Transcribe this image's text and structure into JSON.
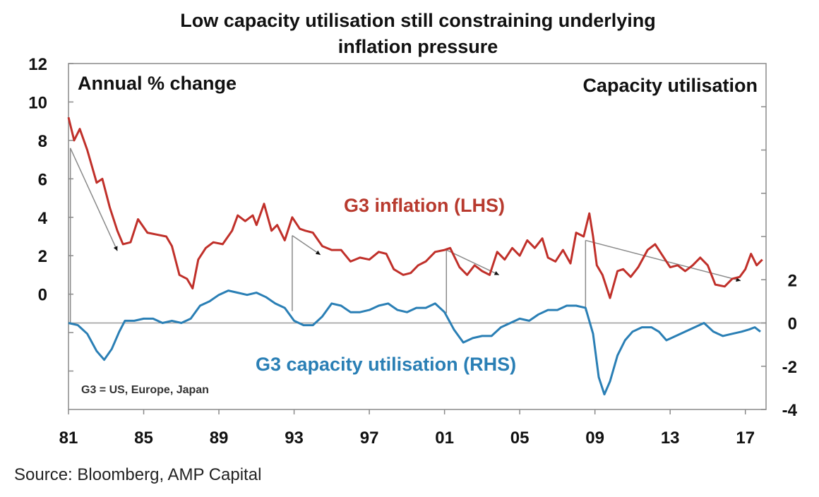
{
  "chart_data": {
    "type": "line",
    "title": "Low capacity utilisation still constraining underlying inflation pressure",
    "title_lines": [
      "Low capacity utilisation still constraining underlying",
      "inflation pressure"
    ],
    "left_axis_label": "Annual % change",
    "right_axis_label": "Capacity utilisation",
    "note": "G3 = US, Europe, Japan",
    "source": "Source: Bloomberg, AMP Capital",
    "x_ticks": [
      {
        "year": 1981,
        "label": "81"
      },
      {
        "year": 1985,
        "label": "85"
      },
      {
        "year": 1989,
        "label": "89"
      },
      {
        "year": 1993,
        "label": "93"
      },
      {
        "year": 1997,
        "label": "97"
      },
      {
        "year": 2001,
        "label": "01"
      },
      {
        "year": 2005,
        "label": "05"
      },
      {
        "year": 2009,
        "label": "09"
      },
      {
        "year": 2013,
        "label": "13"
      },
      {
        "year": 2017,
        "label": "17"
      }
    ],
    "xlim": [
      1981,
      2018.1
    ],
    "y_left": {
      "lim": [
        -6,
        12
      ],
      "ticks": [
        12,
        10,
        8,
        6,
        4,
        2,
        0,
        -2,
        -4
      ],
      "labels": [
        "12",
        "10",
        "8",
        "6",
        "4",
        "2",
        "0",
        "",
        ""
      ]
    },
    "y_right": {
      "lim": [
        -4,
        12
      ],
      "ticks": [
        10,
        8,
        6,
        4,
        2,
        0,
        -2,
        -4
      ],
      "labels": [
        "",
        "",
        "",
        "",
        "2",
        "0",
        "-2",
        "-4"
      ]
    },
    "zero_line_right": 0,
    "grid": false,
    "colors": {
      "inflation": "#c0302a",
      "capacity": "#2a7fb5",
      "annotation": "#8a8a8a"
    },
    "series": [
      {
        "name": "G3 inflation (LHS)",
        "axis": "left",
        "color": "#c0302a",
        "label_color": "#b83a2e",
        "x": [
          1981.0,
          1981.3,
          1981.6,
          1982.0,
          1982.5,
          1982.8,
          1983.2,
          1983.6,
          1983.9,
          1984.3,
          1984.7,
          1985.2,
          1985.7,
          1986.2,
          1986.5,
          1986.9,
          1987.3,
          1987.6,
          1987.9,
          1988.3,
          1988.7,
          1989.2,
          1989.7,
          1990.0,
          1990.4,
          1990.8,
          1991.0,
          1991.4,
          1991.8,
          1992.1,
          1992.5,
          1992.9,
          1993.3,
          1993.6,
          1994.0,
          1994.5,
          1995.0,
          1995.5,
          1996.0,
          1996.5,
          1997.0,
          1997.5,
          1997.9,
          1998.3,
          1998.8,
          1999.2,
          1999.6,
          2000.0,
          2000.5,
          2001.0,
          2001.3,
          2001.8,
          2002.2,
          2002.6,
          2003.0,
          2003.4,
          2003.8,
          2004.2,
          2004.6,
          2005.0,
          2005.4,
          2005.8,
          2006.2,
          2006.5,
          2006.9,
          2007.3,
          2007.7,
          2008.0,
          2008.4,
          2008.7,
          2008.9,
          2009.1,
          2009.4,
          2009.8,
          2010.2,
          2010.5,
          2010.9,
          2011.3,
          2011.8,
          2012.2,
          2012.6,
          2013.0,
          2013.4,
          2013.8,
          2014.2,
          2014.6,
          2015.0,
          2015.4,
          2015.9,
          2016.3,
          2016.7,
          2017.0,
          2017.3,
          2017.6,
          2017.9
        ],
        "values": [
          9.2,
          8.0,
          8.6,
          7.5,
          5.8,
          6.0,
          4.5,
          3.3,
          2.6,
          2.7,
          3.9,
          3.2,
          3.1,
          3.0,
          2.5,
          1.0,
          0.8,
          0.3,
          1.8,
          2.4,
          2.7,
          2.6,
          3.3,
          4.1,
          3.8,
          4.1,
          3.6,
          4.7,
          3.3,
          3.6,
          2.8,
          4.0,
          3.4,
          3.3,
          3.2,
          2.5,
          2.3,
          2.3,
          1.7,
          1.9,
          1.8,
          2.2,
          2.1,
          1.3,
          1.0,
          1.1,
          1.5,
          1.7,
          2.2,
          2.3,
          2.4,
          1.4,
          1.0,
          1.5,
          1.2,
          1.0,
          2.2,
          1.8,
          2.4,
          2.0,
          2.8,
          2.4,
          2.9,
          1.9,
          1.7,
          2.3,
          1.6,
          3.2,
          3.0,
          4.2,
          3.0,
          1.5,
          1.0,
          -0.2,
          1.2,
          1.3,
          0.9,
          1.4,
          2.3,
          2.6,
          2.0,
          1.4,
          1.5,
          1.2,
          1.5,
          1.9,
          1.5,
          0.5,
          0.4,
          0.8,
          0.9,
          1.3,
          2.1,
          1.5,
          1.8
        ]
      },
      {
        "name": "G3 capacity utilisation (RHS)",
        "axis": "right",
        "color": "#2a7fb5",
        "label_color": "#2a7fb5",
        "x": [
          1981.0,
          1981.5,
          1982.0,
          1982.5,
          1982.9,
          1983.3,
          1983.7,
          1984.0,
          1984.5,
          1985.0,
          1985.5,
          1986.0,
          1986.5,
          1987.0,
          1987.5,
          1988.0,
          1988.5,
          1989.0,
          1989.5,
          1990.0,
          1990.5,
          1991.0,
          1991.5,
          1992.0,
          1992.5,
          1993.0,
          1993.5,
          1994.0,
          1994.5,
          1995.0,
          1995.5,
          1996.0,
          1996.5,
          1997.0,
          1997.5,
          1998.0,
          1998.5,
          1999.0,
          1999.5,
          2000.0,
          2000.5,
          2001.0,
          2001.5,
          2002.0,
          2002.5,
          2003.0,
          2003.5,
          2004.0,
          2004.5,
          2005.0,
          2005.5,
          2006.0,
          2006.5,
          2007.0,
          2007.5,
          2008.0,
          2008.5,
          2008.9,
          2009.2,
          2009.5,
          2009.8,
          2010.2,
          2010.6,
          2011.0,
          2011.5,
          2012.0,
          2012.4,
          2012.8,
          2013.3,
          2013.8,
          2014.3,
          2014.8,
          2015.3,
          2015.8,
          2016.3,
          2016.8,
          2017.2,
          2017.5,
          2017.8
        ],
        "values": [
          0.0,
          -0.1,
          -0.5,
          -1.3,
          -1.7,
          -1.2,
          -0.4,
          0.1,
          0.1,
          0.2,
          0.2,
          0.0,
          0.1,
          0.0,
          0.2,
          0.8,
          1.0,
          1.3,
          1.5,
          1.4,
          1.3,
          1.4,
          1.2,
          0.9,
          0.7,
          0.1,
          -0.1,
          -0.1,
          0.3,
          0.9,
          0.8,
          0.5,
          0.5,
          0.6,
          0.8,
          0.9,
          0.6,
          0.5,
          0.7,
          0.7,
          0.9,
          0.5,
          -0.3,
          -0.9,
          -0.7,
          -0.6,
          -0.6,
          -0.2,
          0.0,
          0.2,
          0.1,
          0.4,
          0.6,
          0.6,
          0.8,
          0.8,
          0.7,
          -0.5,
          -2.5,
          -3.3,
          -2.7,
          -1.5,
          -0.8,
          -0.4,
          -0.2,
          -0.2,
          -0.4,
          -0.8,
          -0.6,
          -0.4,
          -0.2,
          0.0,
          -0.4,
          -0.6,
          -0.5,
          -0.4,
          -0.3,
          -0.2,
          -0.4
        ]
      }
    ],
    "annotations": [
      {
        "year": 1981.1,
        "inflation_from": 7.6,
        "capacity_to": 0.0,
        "trend_to_year": 1983.6,
        "trend_to_inflation": 2.25
      },
      {
        "year": 1992.9,
        "inflation_from": 3.05,
        "capacity_to": 0.55,
        "trend_to_year": 1994.4,
        "trend_to_inflation": 2.05
      },
      {
        "year": 2001.1,
        "inflation_from": 2.3,
        "capacity_to": 0.45,
        "trend_to_year": 2003.9,
        "trend_to_inflation": 1.0
      },
      {
        "year": 2008.5,
        "inflation_from": 2.8,
        "capacity_to": 0.55,
        "trend_to_year": 2016.75,
        "trend_to_inflation": 0.7
      }
    ]
  }
}
